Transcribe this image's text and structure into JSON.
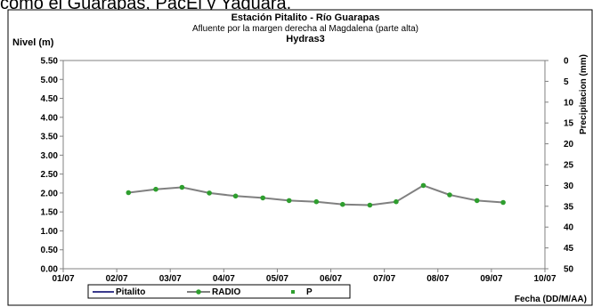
{
  "page_header": "como el Guarapas, PacEl y Yaguará.",
  "chart_data": {
    "type": "line",
    "title": "Estación Pitalito  - Río Guarapas",
    "subtitle": "Afluente por la margen derecha al Magdalena (parte alta)",
    "subtitle2": "Hydras3",
    "ylabel": "Nivel (m)",
    "y2label": "Precipitacion (mm)",
    "xlabel": "Fecha (DD/M/AA)",
    "x_ticks": [
      "01/07",
      "02/07",
      "03/07",
      "04/07",
      "05/07",
      "06/07",
      "07/07",
      "08/07",
      "09/07",
      "10/07"
    ],
    "y_ticks": [
      "0.00",
      "0.50",
      "1.00",
      "1.50",
      "2.00",
      "2.50",
      "3.00",
      "3.50",
      "4.00",
      "4.50",
      "5.00",
      "5.50"
    ],
    "y2_ticks": [
      "0",
      "5",
      "10",
      "15",
      "20",
      "25",
      "30",
      "35",
      "40",
      "45",
      "50"
    ],
    "ylim": [
      0,
      5.5
    ],
    "y2lim": [
      50,
      0
    ],
    "xlim": [
      0,
      9
    ],
    "legend": [
      "Pitalito",
      "RADIO",
      "P"
    ],
    "legend_position": "bottom-left",
    "grid": false,
    "series": [
      {
        "name": "RADIO",
        "color": "#808080",
        "marker_color": "#2e9e2e",
        "x": [
          1.22,
          1.73,
          2.22,
          2.73,
          3.22,
          3.73,
          4.22,
          4.73,
          5.22,
          5.73,
          6.22,
          6.73,
          7.22,
          7.73,
          8.22
        ],
        "y": [
          2.01,
          2.1,
          2.15,
          2.0,
          1.92,
          1.87,
          1.8,
          1.77,
          1.7,
          1.68,
          1.77,
          2.2,
          1.95,
          1.8,
          1.75
        ]
      }
    ]
  }
}
